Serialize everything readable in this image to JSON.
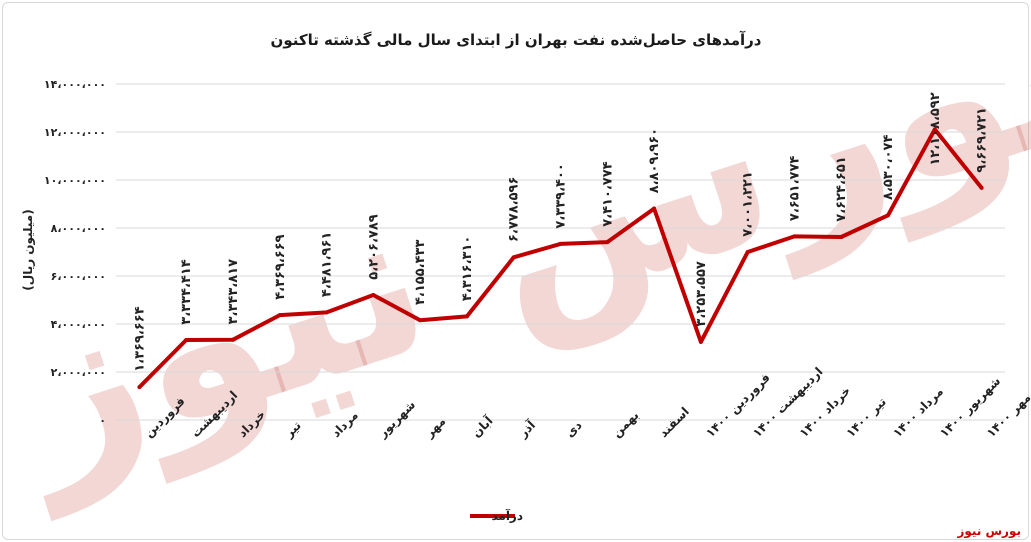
{
  "source_label": "بورس نیوز",
  "watermark_text": "بورس نیوز",
  "colors": {
    "series": "#c00000",
    "grid": "#d9d9d9",
    "watermark": "#c0392b"
  },
  "chart_data": {
    "type": "line",
    "title": "درآمدهای حاصل‌شده نفت بهران از ابتدای سال مالی گذشته تاکنون",
    "ylabel": "(میلیون ریال)",
    "xlabel": "",
    "ylim": [
      0,
      14000000
    ],
    "yticks": [
      0,
      2000000,
      4000000,
      6000000,
      8000000,
      10000000,
      12000000,
      14000000
    ],
    "ytick_labels": [
      "۰",
      "۲،۰۰۰،۰۰۰",
      "۴،۰۰۰،۰۰۰",
      "۶،۰۰۰،۰۰۰",
      "۸،۰۰۰،۰۰۰",
      "۱۰،۰۰۰،۰۰۰",
      "۱۲،۰۰۰،۰۰۰",
      "۱۴،۰۰۰،۰۰۰"
    ],
    "grid": true,
    "legend_position": "bottom",
    "categories": [
      "فروردین",
      "اردیبهشت",
      "خرداد",
      "تیر",
      "مرداد",
      "شهریور",
      "مهر",
      "آبان",
      "آذر",
      "دی",
      "بهمن",
      "اسفند",
      "فروردین ۱۴۰۰",
      "اردیبهشت ۱۴۰۰",
      "خرداد ۱۴۰۰",
      "تیر ۱۴۰۰",
      "مرداد ۱۴۰۰",
      "شهریور ۱۴۰۰",
      "مهر ۱۴۰۰"
    ],
    "series": [
      {
        "name": "درآمد",
        "values": [
          1369664,
          3334414,
          3343817,
          4369669,
          4481961,
          5206789,
          4155433,
          4316310,
          6778596,
          7339400,
          7410774,
          8809960,
          3253557,
          7001221,
          7651774,
          7624651,
          8530074,
          12108592,
          9669721
        ],
        "labels": [
          "۱،۳۶۹،۶۶۴",
          "۳،۳۳۴،۴۱۴",
          "۳،۳۴۳،۸۱۷",
          "۴،۳۶۹،۶۶۹",
          "۴،۴۸۱،۹۶۱",
          "۵،۲۰۶،۷۸۹",
          "۴،۱۵۵،۴۳۳",
          "۴،۳۱۶،۳۱۰",
          "۶،۷۷۸،۵۹۶",
          "۷،۳۳۹،۴۰۰",
          "۷،۴۱۰،۷۷۴",
          "۸،۸۰۹،۹۶۰",
          "۳،۲۵۳،۵۵۷",
          "۷،۰۰۱،۲۲۱",
          "۷،۶۵۱،۷۷۴",
          "۷،۶۲۴،۶۵۱",
          "۸،۵۳۰،۰۷۴",
          "۱۲،۱۰۸،۵۹۲",
          "۹،۶۶۹،۷۲۱"
        ]
      }
    ]
  }
}
